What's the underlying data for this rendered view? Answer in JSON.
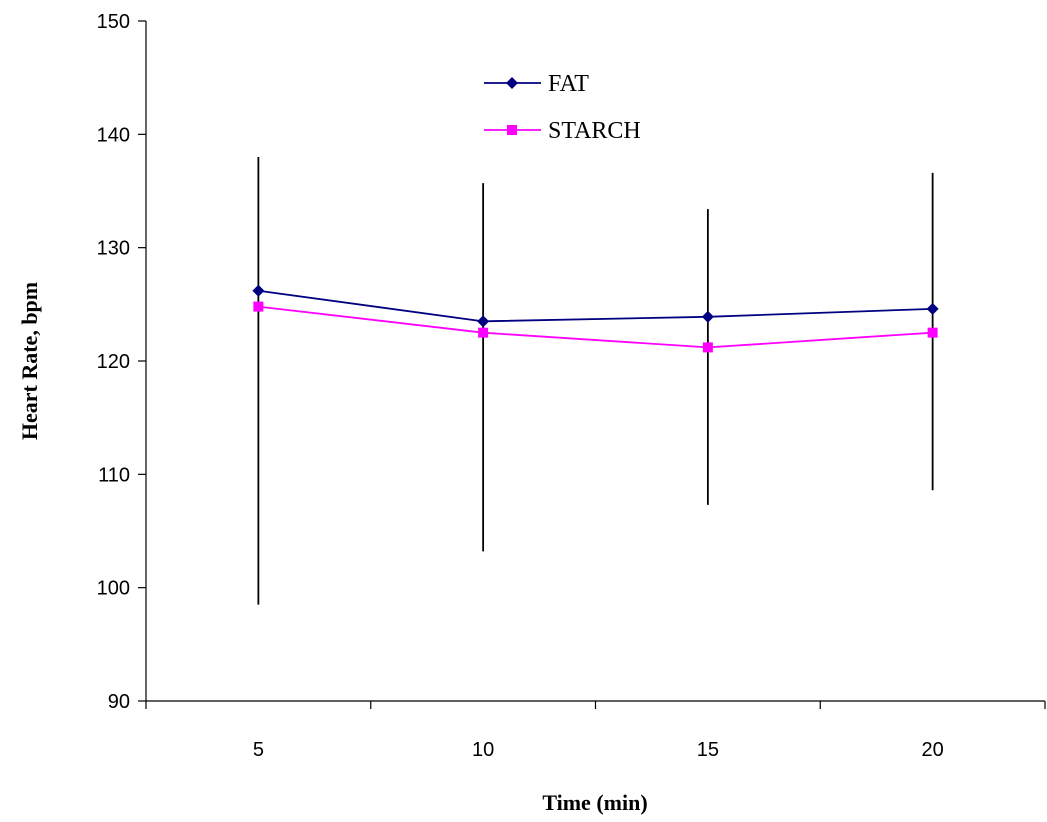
{
  "chart_data": {
    "type": "line",
    "title": "",
    "xlabel": "Time (min)",
    "ylabel": "Heart Rate, bpm",
    "categories": [
      "5",
      "10",
      "15",
      "20"
    ],
    "x": [
      5,
      10,
      15,
      20
    ],
    "ylim": [
      90,
      150
    ],
    "yticks": [
      "90",
      "100",
      "110",
      "120",
      "130",
      "140",
      "150"
    ],
    "grid": false,
    "legend_position": "top-center",
    "series": [
      {
        "name": "FAT",
        "color": "#000080",
        "marker": "diamond",
        "values": [
          126.2,
          123.5,
          123.9,
          124.6
        ]
      },
      {
        "name": "STARCH",
        "color": "#ff00ff",
        "marker": "square",
        "values": [
          124.8,
          122.5,
          121.2,
          122.5
        ]
      }
    ],
    "error_bars": {
      "color": "#000000",
      "low": [
        98.5,
        103.2,
        107.3,
        108.6
      ],
      "high": [
        138.0,
        135.7,
        133.4,
        136.6
      ]
    }
  }
}
